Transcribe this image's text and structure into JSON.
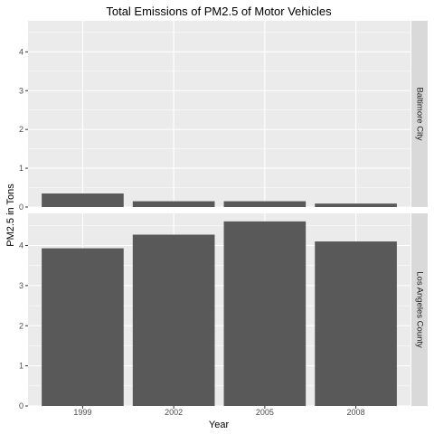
{
  "chart_data": {
    "type": "bar",
    "title": "Total Emissions of PM2.5 of Motor Vehicles",
    "xlabel": "Year",
    "ylabel": "PM2.5 in Tons",
    "categories": [
      "1999",
      "2002",
      "2005",
      "2008"
    ],
    "facet_orientation": "rows",
    "shared_y_axis": true,
    "ylim": [
      0,
      4.8
    ],
    "yticks": [
      0,
      1,
      2,
      3,
      4
    ],
    "grid": true,
    "bar_color": "#595959",
    "panel_background": "#ebebeb",
    "strip_background": "#d9d9d9",
    "facets": [
      {
        "label": "Baltimore City",
        "values": [
          0.35,
          0.15,
          0.15,
          0.09
        ]
      },
      {
        "label": "Los Angeles County",
        "values": [
          3.93,
          4.27,
          4.6,
          4.1
        ]
      }
    ]
  }
}
